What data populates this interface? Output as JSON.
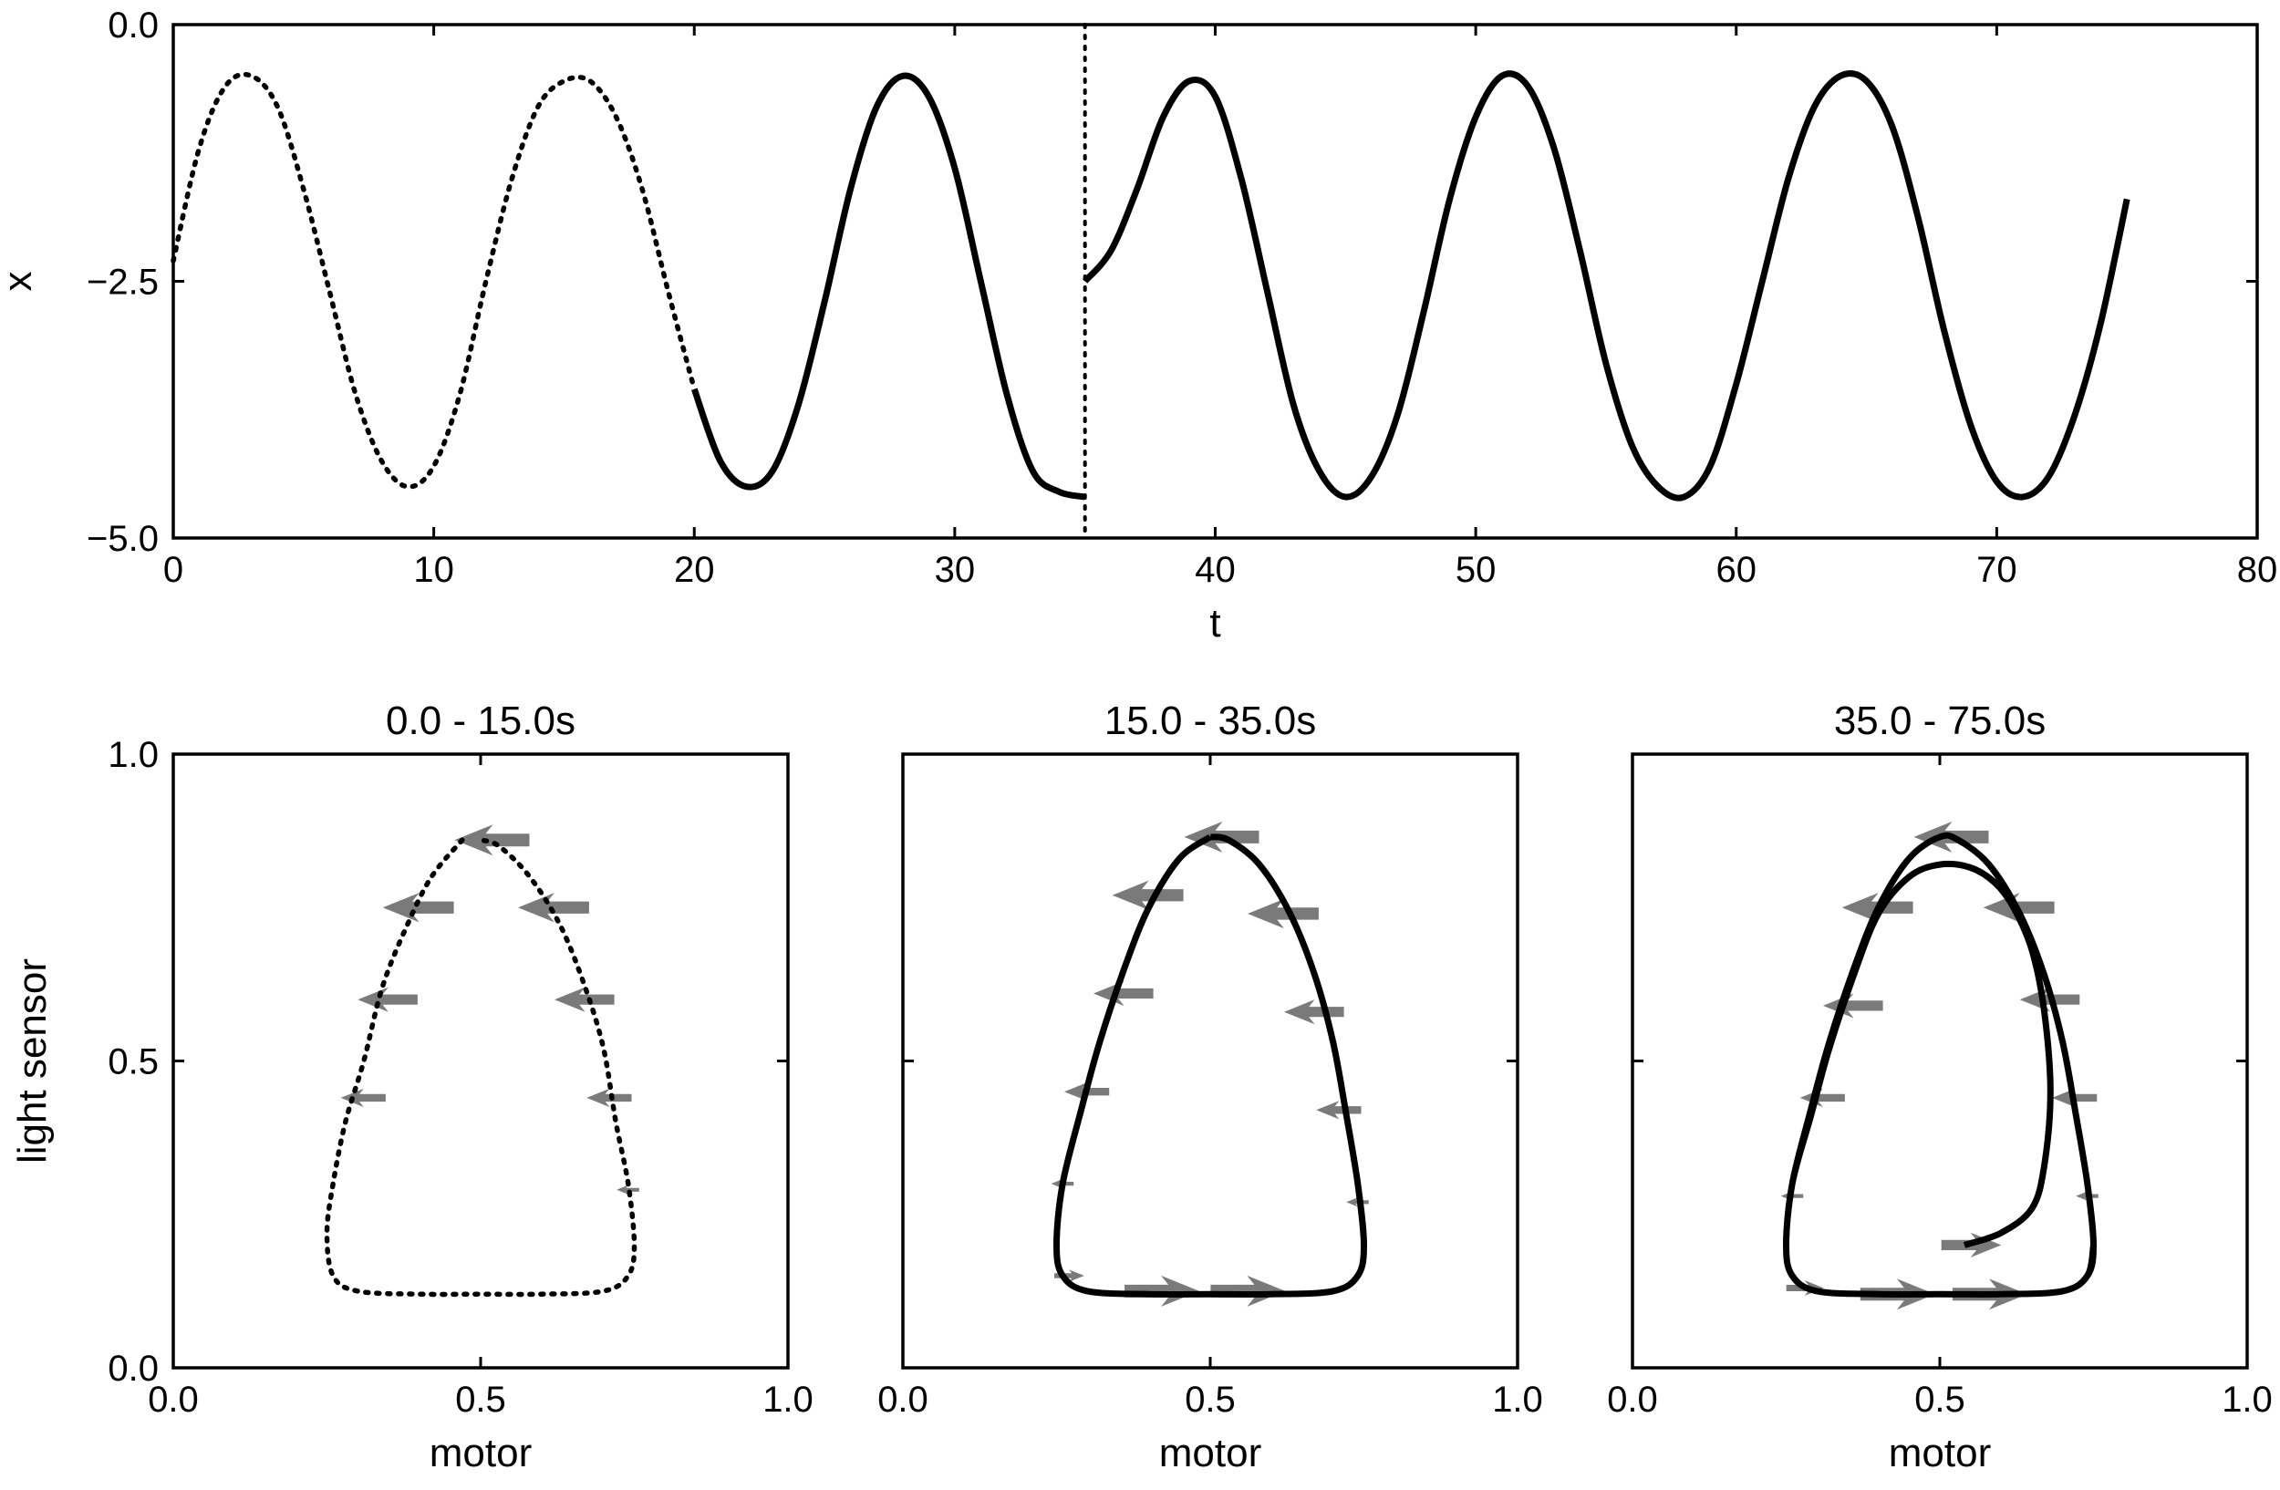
{
  "chart_data": [
    {
      "type": "line",
      "xlabel": "t",
      "ylabel": "x",
      "xlim": [
        0,
        80
      ],
      "ylim": [
        -5.0,
        0.0
      ],
      "xticks": [
        "0",
        "10",
        "20",
        "30",
        "40",
        "50",
        "60",
        "70",
        "80"
      ],
      "yticks": [
        "0.0",
        "−2.5",
        "−5.0"
      ],
      "vertical_marker": {
        "x": 35,
        "style": "dotted"
      },
      "series": [
        {
          "style": "dotted",
          "x": [
            0,
            1,
            2,
            3,
            4,
            5,
            6,
            7,
            8,
            9,
            10,
            11,
            12,
            13,
            14,
            15,
            16,
            17,
            18,
            19,
            20
          ],
          "y": [
            -2.3,
            -1.2,
            -0.6,
            -0.5,
            -0.8,
            -1.6,
            -2.6,
            -3.6,
            -4.25,
            -4.5,
            -4.3,
            -3.6,
            -2.5,
            -1.5,
            -0.8,
            -0.55,
            -0.55,
            -0.9,
            -1.6,
            -2.6,
            -3.55
          ]
        },
        {
          "style": "solid",
          "x": [
            20,
            21,
            22,
            23,
            24,
            25,
            26,
            27,
            28,
            29,
            30,
            31,
            32,
            33,
            34,
            35
          ],
          "y": [
            -3.55,
            -4.25,
            -4.5,
            -4.35,
            -3.7,
            -2.7,
            -1.6,
            -0.8,
            -0.5,
            -0.7,
            -1.4,
            -2.5,
            -3.6,
            -4.35,
            -4.55,
            -4.6
          ]
        },
        {
          "style": "solid",
          "x": [
            35,
            36,
            37,
            38,
            39,
            40,
            41,
            42,
            43,
            44,
            45,
            46,
            47,
            48,
            49,
            50,
            51,
            52,
            53,
            54,
            55,
            56,
            57,
            58,
            59,
            60,
            61,
            62,
            63,
            64,
            65,
            66,
            67,
            68,
            69,
            70,
            71,
            72,
            73,
            74,
            75
          ],
          "y": [
            -2.5,
            -2.2,
            -1.6,
            -0.9,
            -0.55,
            -0.7,
            -1.5,
            -2.6,
            -3.7,
            -4.35,
            -4.6,
            -4.4,
            -3.8,
            -2.8,
            -1.7,
            -0.9,
            -0.5,
            -0.6,
            -1.2,
            -2.2,
            -3.3,
            -4.1,
            -4.5,
            -4.6,
            -4.3,
            -3.5,
            -2.5,
            -1.5,
            -0.8,
            -0.5,
            -0.55,
            -1.0,
            -1.9,
            -3.0,
            -3.9,
            -4.45,
            -4.6,
            -4.4,
            -3.8,
            -2.9,
            -1.7
          ]
        }
      ]
    },
    {
      "type": "line",
      "title": "0.0 - 15.0s",
      "xlabel": "motor",
      "ylabel": "light sensor",
      "xlim": [
        0,
        1
      ],
      "ylim": [
        0,
        1
      ],
      "xticks": [
        "0.0",
        "0.5",
        "1.0"
      ],
      "yticks": [
        "0.0",
        "0.5",
        "1.0"
      ],
      "series": [
        {
          "style": "dotted",
          "x": [
            0.47,
            0.42,
            0.38,
            0.34,
            0.31,
            0.28,
            0.26,
            0.25,
            0.26,
            0.3,
            0.4,
            0.5,
            0.6,
            0.7,
            0.74,
            0.75,
            0.74,
            0.72,
            0.7,
            0.67,
            0.63,
            0.58,
            0.53,
            0.5
          ],
          "y": [
            0.86,
            0.8,
            0.72,
            0.62,
            0.5,
            0.4,
            0.3,
            0.22,
            0.15,
            0.125,
            0.12,
            0.12,
            0.12,
            0.125,
            0.15,
            0.2,
            0.3,
            0.4,
            0.52,
            0.62,
            0.72,
            0.8,
            0.85,
            0.86
          ]
        }
      ],
      "arrows": [
        {
          "x": 0.52,
          "y": 0.86,
          "direction": "left",
          "size": 1.0
        },
        {
          "x": 0.4,
          "y": 0.75,
          "direction": "left",
          "size": 0.95
        },
        {
          "x": 0.35,
          "y": 0.6,
          "direction": "left",
          "size": 0.8
        },
        {
          "x": 0.31,
          "y": 0.44,
          "direction": "left",
          "size": 0.6
        },
        {
          "x": 0.62,
          "y": 0.75,
          "direction": "left",
          "size": 0.95
        },
        {
          "x": 0.67,
          "y": 0.6,
          "direction": "left",
          "size": 0.8
        },
        {
          "x": 0.71,
          "y": 0.44,
          "direction": "left",
          "size": 0.6
        },
        {
          "x": 0.74,
          "y": 0.29,
          "direction": "left",
          "size": 0.3
        }
      ]
    },
    {
      "type": "line",
      "title": "15.0 - 35.0s",
      "xlabel": "motor",
      "xlim": [
        0,
        1
      ],
      "ylim": [
        0,
        1
      ],
      "xticks": [
        "0.0",
        "0.5",
        "1.0"
      ],
      "series": [
        {
          "style": "solid",
          "x": [
            0.5,
            0.45,
            0.4,
            0.36,
            0.32,
            0.29,
            0.26,
            0.25,
            0.26,
            0.3,
            0.4,
            0.5,
            0.6,
            0.7,
            0.74,
            0.75,
            0.74,
            0.72,
            0.7,
            0.67,
            0.63,
            0.58,
            0.53,
            0.5
          ],
          "y": [
            0.865,
            0.83,
            0.75,
            0.65,
            0.53,
            0.42,
            0.3,
            0.2,
            0.15,
            0.125,
            0.12,
            0.12,
            0.12,
            0.125,
            0.15,
            0.2,
            0.3,
            0.42,
            0.53,
            0.64,
            0.74,
            0.82,
            0.86,
            0.865
          ]
        }
      ],
      "arrows": [
        {
          "x": 0.52,
          "y": 0.865,
          "direction": "left",
          "size": 1.0
        },
        {
          "x": 0.4,
          "y": 0.77,
          "direction": "left",
          "size": 0.95
        },
        {
          "x": 0.36,
          "y": 0.61,
          "direction": "left",
          "size": 0.8
        },
        {
          "x": 0.3,
          "y": 0.45,
          "direction": "left",
          "size": 0.6
        },
        {
          "x": 0.26,
          "y": 0.3,
          "direction": "left",
          "size": 0.3
        },
        {
          "x": 0.27,
          "y": 0.15,
          "direction": "right",
          "size": 0.4
        },
        {
          "x": 0.42,
          "y": 0.125,
          "direction": "right",
          "size": 1.0
        },
        {
          "x": 0.56,
          "y": 0.125,
          "direction": "right",
          "size": 1.0
        },
        {
          "x": 0.62,
          "y": 0.74,
          "direction": "left",
          "size": 0.95
        },
        {
          "x": 0.67,
          "y": 0.58,
          "direction": "left",
          "size": 0.8
        },
        {
          "x": 0.71,
          "y": 0.42,
          "direction": "left",
          "size": 0.6
        },
        {
          "x": 0.74,
          "y": 0.27,
          "direction": "left",
          "size": 0.3
        }
      ]
    },
    {
      "type": "line",
      "title": "35.0 - 75.0s",
      "xlabel": "motor",
      "xlim": [
        0,
        1
      ],
      "ylim": [
        0,
        1
      ],
      "xticks": [
        "0.0",
        "0.5",
        "1.0"
      ],
      "series": [
        {
          "style": "solid",
          "x": [
            0.54,
            0.6,
            0.65,
            0.67,
            0.68,
            0.67,
            0.65,
            0.62,
            0.59,
            0.55,
            0.5,
            0.45,
            0.4,
            0.36,
            0.32,
            0.29,
            0.26,
            0.25,
            0.26,
            0.3,
            0.4,
            0.5,
            0.6,
            0.7,
            0.74,
            0.75,
            0.74,
            0.72,
            0.7,
            0.67,
            0.63,
            0.58,
            0.53,
            0.5,
            0.45,
            0.4,
            0.36,
            0.32,
            0.29,
            0.26,
            0.25,
            0.26,
            0.3,
            0.4,
            0.5,
            0.6,
            0.7,
            0.74,
            0.75
          ],
          "y": [
            0.2,
            0.22,
            0.26,
            0.33,
            0.45,
            0.58,
            0.68,
            0.75,
            0.79,
            0.815,
            0.82,
            0.8,
            0.74,
            0.64,
            0.52,
            0.41,
            0.3,
            0.2,
            0.15,
            0.125,
            0.12,
            0.12,
            0.12,
            0.125,
            0.15,
            0.2,
            0.3,
            0.42,
            0.53,
            0.64,
            0.74,
            0.82,
            0.86,
            0.865,
            0.83,
            0.75,
            0.65,
            0.53,
            0.42,
            0.3,
            0.2,
            0.15,
            0.125,
            0.12,
            0.12,
            0.12,
            0.125,
            0.15,
            0.2
          ]
        }
      ],
      "arrows": [
        {
          "x": 0.55,
          "y": 0.2,
          "direction": "right",
          "size": 0.8
        },
        {
          "x": 0.52,
          "y": 0.865,
          "direction": "left",
          "size": 1.0
        },
        {
          "x": 0.4,
          "y": 0.75,
          "direction": "left",
          "size": 0.95
        },
        {
          "x": 0.36,
          "y": 0.59,
          "direction": "left",
          "size": 0.8
        },
        {
          "x": 0.31,
          "y": 0.44,
          "direction": "left",
          "size": 0.6
        },
        {
          "x": 0.26,
          "y": 0.28,
          "direction": "left",
          "size": 0.3
        },
        {
          "x": 0.28,
          "y": 0.13,
          "direction": "right",
          "size": 0.5
        },
        {
          "x": 0.43,
          "y": 0.12,
          "direction": "right",
          "size": 1.0
        },
        {
          "x": 0.58,
          "y": 0.12,
          "direction": "right",
          "size": 1.0
        },
        {
          "x": 0.63,
          "y": 0.75,
          "direction": "left",
          "size": 0.95
        },
        {
          "x": 0.68,
          "y": 0.6,
          "direction": "left",
          "size": 0.8
        },
        {
          "x": 0.72,
          "y": 0.44,
          "direction": "left",
          "size": 0.6
        },
        {
          "x": 0.74,
          "y": 0.28,
          "direction": "left",
          "size": 0.3
        }
      ]
    }
  ]
}
